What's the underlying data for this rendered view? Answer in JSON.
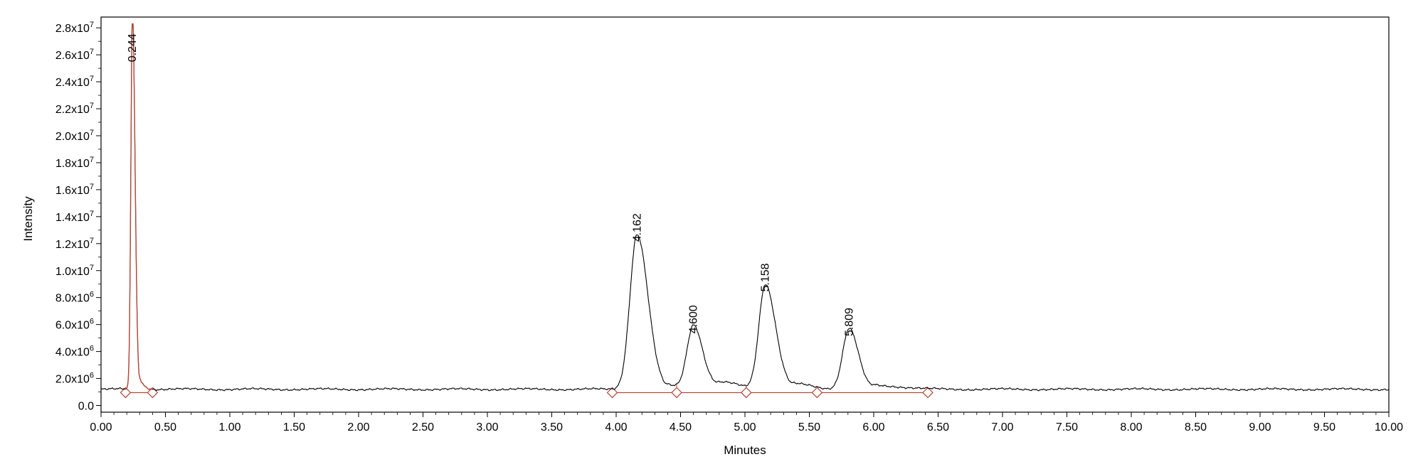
{
  "chart_data": {
    "type": "line",
    "title": "",
    "xlabel": "Minutes",
    "ylabel": "Intensity",
    "xlim": [
      0,
      10
    ],
    "ylim": [
      -500000,
      28800000
    ],
    "x_ticks": [
      0,
      0.5,
      1,
      1.5,
      2,
      2.5,
      3,
      3.5,
      4,
      4.5,
      5,
      5.5,
      6,
      6.5,
      7,
      7.5,
      8,
      8.5,
      9,
      9.5,
      10
    ],
    "x_tick_labels": [
      "0.00",
      "0.50",
      "1.00",
      "1.50",
      "2.00",
      "2.50",
      "3.00",
      "3.50",
      "4.00",
      "4.50",
      "5.00",
      "5.50",
      "6.00",
      "6.50",
      "7.00",
      "7.50",
      "8.00",
      "8.50",
      "9.00",
      "9.50",
      "10.00"
    ],
    "y_ticks": [
      {
        "value": 0,
        "mantissa": "0.0",
        "exp": ""
      },
      {
        "value": 2000000,
        "mantissa": "2.0x10",
        "exp": "6"
      },
      {
        "value": 4000000,
        "mantissa": "4.0x10",
        "exp": "6"
      },
      {
        "value": 6000000,
        "mantissa": "6.0x10",
        "exp": "6"
      },
      {
        "value": 8000000,
        "mantissa": "8.0x10",
        "exp": "6"
      },
      {
        "value": 10000000,
        "mantissa": "1.0x10",
        "exp": "7"
      },
      {
        "value": 12000000,
        "mantissa": "1.2x10",
        "exp": "7"
      },
      {
        "value": 14000000,
        "mantissa": "1.4x10",
        "exp": "7"
      },
      {
        "value": 16000000,
        "mantissa": "1.6x10",
        "exp": "7"
      },
      {
        "value": 18000000,
        "mantissa": "1.8x10",
        "exp": "7"
      },
      {
        "value": 20000000,
        "mantissa": "2.0x10",
        "exp": "7"
      },
      {
        "value": 22000000,
        "mantissa": "2.2x10",
        "exp": "7"
      },
      {
        "value": 24000000,
        "mantissa": "2.4x10",
        "exp": "7"
      },
      {
        "value": 26000000,
        "mantissa": "2.6x10",
        "exp": "7"
      },
      {
        "value": 28000000,
        "mantissa": "2.8x10",
        "exp": "7"
      }
    ],
    "grid": false,
    "baseline_intensity": 1200000,
    "peaks": [
      {
        "label": "0.244",
        "rt": 0.244,
        "height": 28100000,
        "width_left": 0.012,
        "width_right": 0.02,
        "tail": 0.03,
        "highlight": true
      },
      {
        "label": "4.162",
        "rt": 4.162,
        "height": 11500000,
        "width_left": 0.055,
        "width_right": 0.085,
        "tail": 0.12,
        "highlight": false
      },
      {
        "label": "4.600",
        "rt": 4.6,
        "height": 4700000,
        "width_left": 0.05,
        "width_right": 0.07,
        "tail": 0.1,
        "highlight": false
      },
      {
        "label": "5.158",
        "rt": 5.158,
        "height": 7800000,
        "width_left": 0.05,
        "width_right": 0.08,
        "tail": 0.12,
        "highlight": false
      },
      {
        "label": "5.809",
        "rt": 5.809,
        "height": 4500000,
        "width_left": 0.05,
        "width_right": 0.07,
        "tail": 0.13,
        "highlight": false
      }
    ],
    "integration_markers": [
      0.19,
      0.4,
      3.97,
      4.47,
      5.01,
      5.56,
      6.42
    ],
    "integration_baselines": [
      {
        "x1": 0.19,
        "x2": 0.4,
        "y": 950000
      },
      {
        "x1": 3.97,
        "x2": 6.42,
        "y": 950000
      }
    ],
    "colors": {
      "trace": "#000000",
      "integration": "#b5493a",
      "axis": "#000000"
    }
  }
}
